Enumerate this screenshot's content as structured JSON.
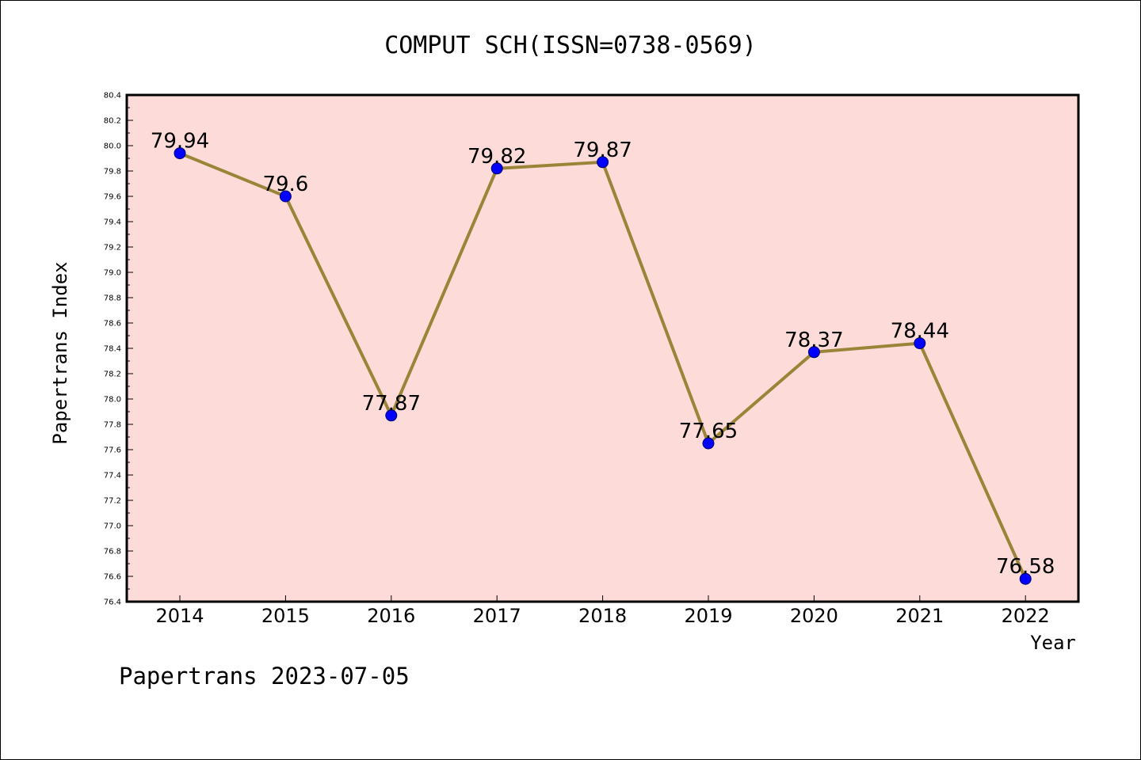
{
  "chart_data": {
    "type": "line",
    "title": "COMPUT SCH(ISSN=0738-0569)",
    "xlabel": "Year",
    "ylabel": "Papertrans Index",
    "categories": [
      "2014",
      "2015",
      "2016",
      "2017",
      "2018",
      "2019",
      "2020",
      "2021",
      "2022"
    ],
    "series": [
      {
        "values": [
          79.94,
          79.6,
          77.87,
          79.82,
          79.87,
          77.65,
          78.37,
          78.44,
          76.58
        ],
        "data_labels": [
          "79.94",
          "79.6",
          "77.87",
          "79.82",
          "79.87",
          "77.65",
          "78.37",
          "78.44",
          "76.58"
        ]
      }
    ],
    "ylim": [
      76.4,
      80.4
    ],
    "yticks": [
      "76.4",
      "76.6",
      "76.8",
      "77.0",
      "77.2",
      "77.4",
      "77.6",
      "77.8",
      "78.0",
      "78.2",
      "78.4",
      "78.6",
      "78.8",
      "79.0",
      "79.2",
      "79.4",
      "79.6",
      "79.8",
      "80.0",
      "80.2",
      "80.4"
    ],
    "grid": false,
    "colors": {
      "plot_background": "#fddbd8",
      "line": "#9a8438",
      "marker": "#0000ff"
    }
  },
  "footer": "Papertrans 2023-07-05"
}
